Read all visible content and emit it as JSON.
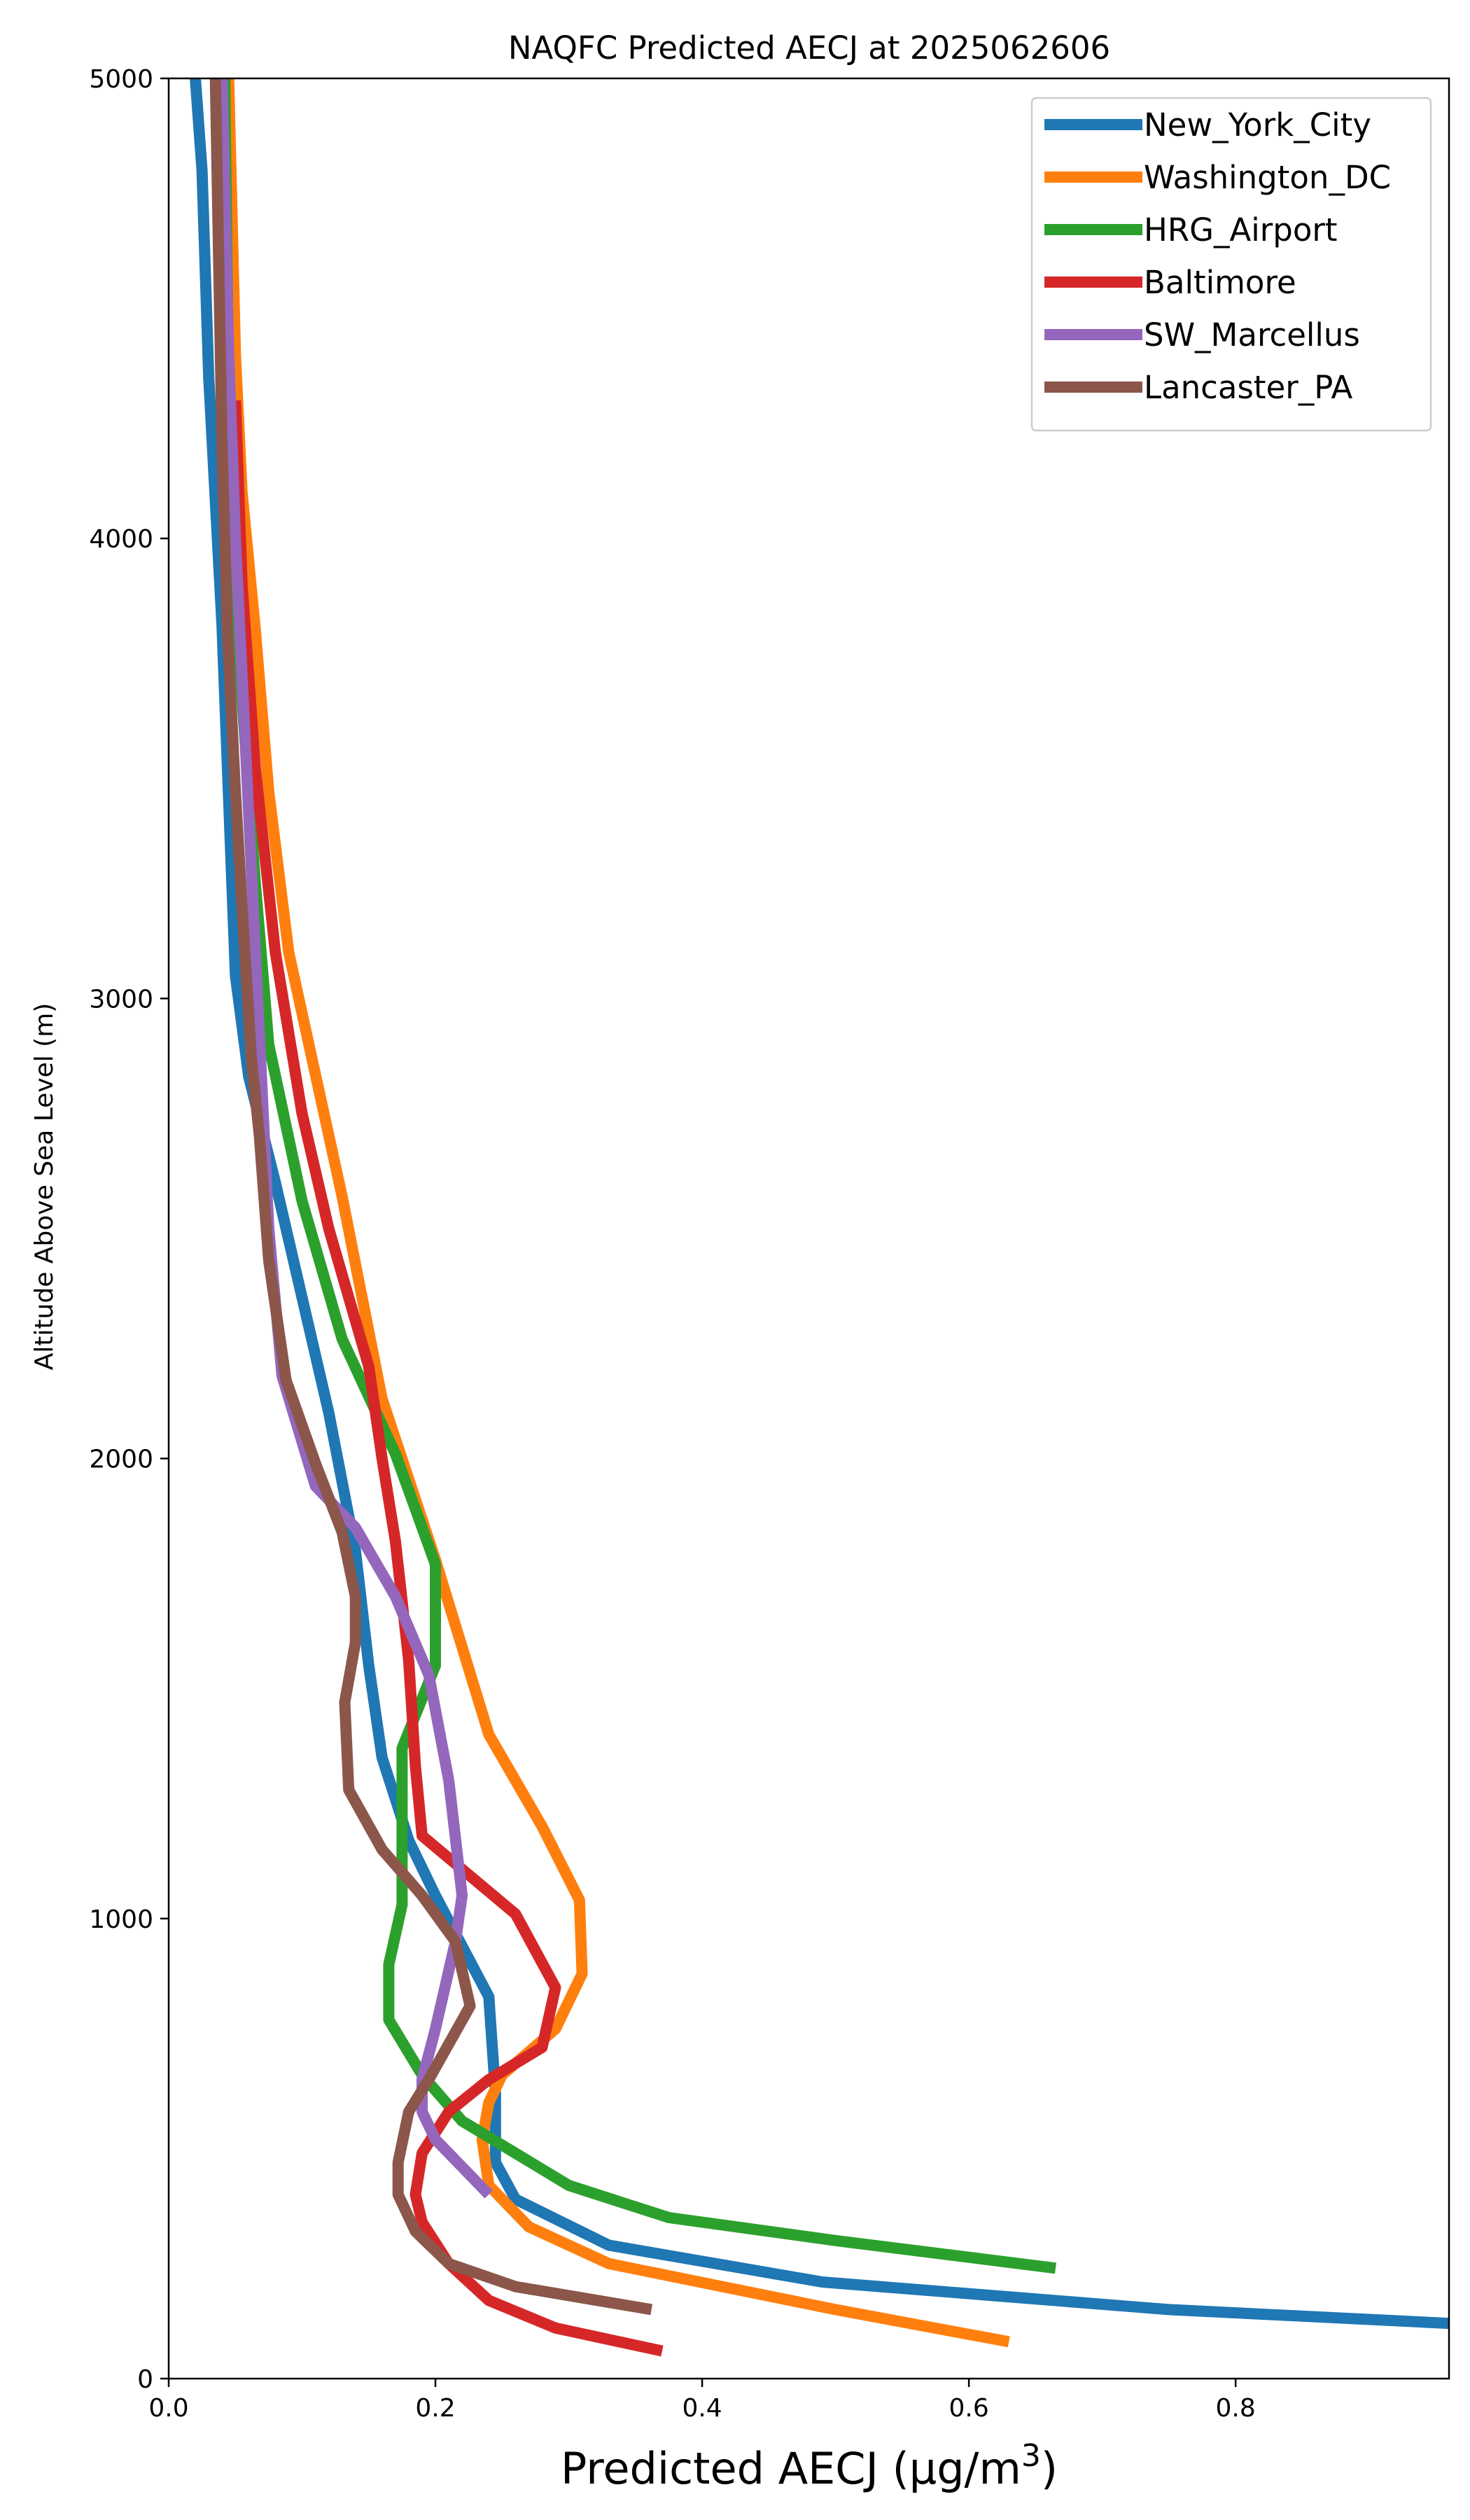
{
  "chart_data": {
    "type": "line",
    "title": "NAQFC Predicted AECJ at 2025062606",
    "xlabel": "Predicted AECJ (μg/m³)",
    "ylabel": "Altitude Above Sea Level (m)",
    "xlim": [
      0,
      0.96
    ],
    "ylim": [
      0,
      5000
    ],
    "xticks": [
      "0.0",
      "0.2",
      "0.4",
      "0.6",
      "0.8"
    ],
    "yticks": [
      "0",
      "1000",
      "2000",
      "3000",
      "4000",
      "5000"
    ],
    "grid": false,
    "legend_position": "top-right",
    "series": [
      {
        "name": "New_York_City",
        "color": "#1f77b4",
        "x": [
          0.96,
          0.75,
          0.49,
          0.33,
          0.26,
          0.245,
          0.245,
          0.24,
          0.2,
          0.18,
          0.16,
          0.15,
          0.14,
          0.12,
          0.1,
          0.08,
          0.06,
          0.05,
          0.045,
          0.04,
          0.03,
          0.025,
          0.02
        ],
        "y": [
          120,
          150,
          210,
          290,
          390,
          470,
          620,
          830,
          1050,
          1170,
          1350,
          1550,
          1800,
          2100,
          2350,
          2600,
          2830,
          3050,
          3430,
          3810,
          4350,
          4800,
          5000
        ]
      },
      {
        "name": "Washington_DC",
        "color": "#ff7f0e",
        "x": [
          0.63,
          0.5,
          0.33,
          0.27,
          0.24,
          0.235,
          0.24,
          0.25,
          0.29,
          0.31,
          0.308,
          0.28,
          0.24,
          0.2,
          0.16,
          0.13,
          0.09,
          0.075,
          0.065,
          0.055,
          0.05,
          0.045
        ],
        "y": [
          80,
          150,
          250,
          330,
          420,
          520,
          600,
          660,
          760,
          880,
          1040,
          1200,
          1400,
          1780,
          2130,
          2570,
          3100,
          3450,
          3800,
          4100,
          4400,
          5000
        ]
      },
      {
        "name": "HRG_Airport",
        "color": "#2ca02c",
        "x": [
          0.665,
          0.5,
          0.375,
          0.3,
          0.26,
          0.22,
          0.19,
          0.165,
          0.165,
          0.175,
          0.175,
          0.2,
          0.2,
          0.17,
          0.13,
          0.1,
          0.075,
          0.065,
          0.055,
          0.048,
          0.045,
          0.042
        ],
        "y": [
          240,
          300,
          350,
          420,
          490,
          560,
          660,
          780,
          900,
          1030,
          1370,
          1550,
          1770,
          2010,
          2260,
          2560,
          2900,
          3250,
          3650,
          4000,
          4300,
          5000
        ]
      },
      {
        "name": "Baltimore",
        "color": "#d62728",
        "x": [
          0.37,
          0.29,
          0.24,
          0.21,
          0.19,
          0.185,
          0.19,
          0.21,
          0.24,
          0.28,
          0.29,
          0.26,
          0.19,
          0.185,
          0.18,
          0.17,
          0.16,
          0.15,
          0.12,
          0.1,
          0.08,
          0.065,
          0.055,
          0.05
        ],
        "y": [
          60,
          110,
          170,
          250,
          340,
          400,
          490,
          580,
          650,
          720,
          850,
          1010,
          1180,
          1330,
          1560,
          1820,
          2000,
          2200,
          2500,
          2750,
          3100,
          3500,
          3900,
          4300
        ]
      },
      {
        "name": "SW_Marcellus",
        "color": "#9467bd",
        "x": [
          0.24,
          0.2,
          0.19,
          0.19,
          0.2,
          0.215,
          0.22,
          0.21,
          0.195,
          0.17,
          0.14,
          0.11,
          0.085,
          0.075,
          0.07,
          0.065,
          0.06,
          0.055,
          0.05,
          0.045,
          0.04
        ],
        "y": [
          400,
          520,
          580,
          650,
          760,
          950,
          1050,
          1300,
          1530,
          1700,
          1850,
          1940,
          2180,
          2500,
          2800,
          3100,
          3400,
          3700,
          4000,
          4400,
          5000
        ]
      },
      {
        "name": "Lancaster_PA",
        "color": "#8c564b",
        "x": [
          0.362,
          0.26,
          0.21,
          0.185,
          0.172,
          0.172,
          0.18,
          0.195,
          0.226,
          0.215,
          0.19,
          0.16,
          0.135,
          0.132,
          0.14,
          0.14,
          0.13,
          0.11,
          0.088,
          0.075,
          0.068,
          0.062,
          0.056,
          0.05,
          0.044,
          0.04,
          0.035
        ],
        "y": [
          150,
          200,
          250,
          320,
          400,
          470,
          580,
          650,
          810,
          950,
          1050,
          1150,
          1280,
          1470,
          1600,
          1700,
          1840,
          1990,
          2170,
          2430,
          2700,
          2870,
          3150,
          3450,
          3800,
          4200,
          5000
        ]
      }
    ]
  }
}
